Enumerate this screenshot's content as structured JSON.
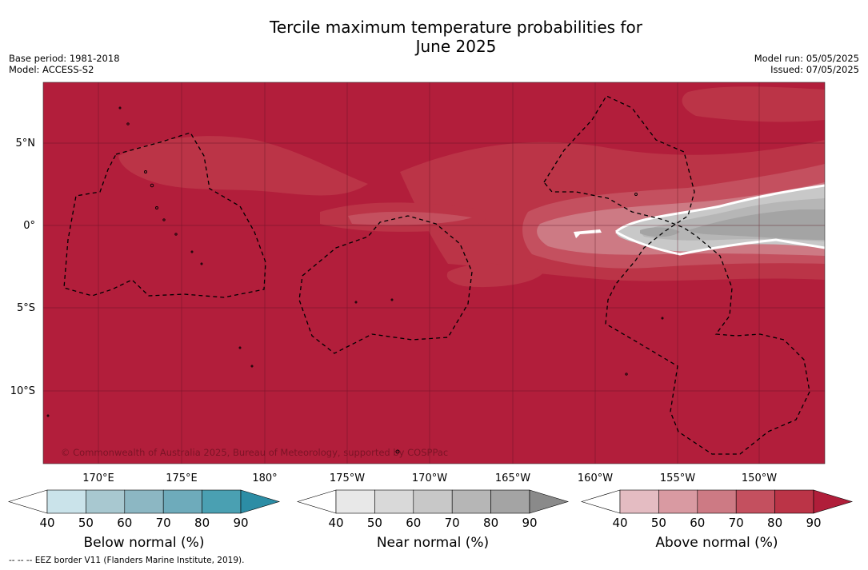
{
  "title_line1": "Tercile maximum temperature probabilities for",
  "title_line2": "June 2025",
  "base_period": "Base period: 1981-2018",
  "model": "Model: ACCESS-S2",
  "model_run": "Model run: 05/05/2025",
  "issued": "Issued: 07/05/2025",
  "copyright": "© Commonwealth of Australia 2025, Bureau of Meteorology, supported by COSPPac",
  "footnote": "--  --  -- EEZ border V11 (Flanders Marine Institute, 2019).",
  "lat_labels": [
    "5°N",
    "0°",
    "5°S",
    "10°S"
  ],
  "lon_labels": [
    "170°E",
    "175°E",
    "180°",
    "175°W",
    "170°W",
    "165°W",
    "160°W",
    "155°W",
    "150°W"
  ],
  "colorbars": [
    {
      "title": "Below normal (%)",
      "ticks": [
        "40",
        "50",
        "60",
        "70",
        "80",
        "90"
      ],
      "colors": [
        "#ffffff",
        "#cae3ea",
        "#a8c8d0",
        "#8cb7c3",
        "#6eabbb",
        "#4aa0b2",
        "#2c8da5"
      ]
    },
    {
      "title": "Near normal (%)",
      "ticks": [
        "40",
        "50",
        "60",
        "70",
        "80",
        "90"
      ],
      "colors": [
        "#ffffff",
        "#e8e8e8",
        "#d9d9d9",
        "#c8c8c8",
        "#b6b6b6",
        "#a4a4a4",
        "#8a8a8a"
      ]
    },
    {
      "title": "Above normal (%)",
      "ticks": [
        "40",
        "50",
        "60",
        "70",
        "80",
        "90"
      ],
      "colors": [
        "#ffffff",
        "#e4bcc2",
        "#d99aa2",
        "#cd7a84",
        "#c4505f",
        "#bb3447",
        "#b01e3a"
      ]
    }
  ],
  "colors": {
    "above_90": "#b21e3b",
    "above_80": "#bb3447",
    "above_70": "#c4505f",
    "above_60": "#cd7a84",
    "near_60": "#c8c8c8",
    "near_70": "#b6b6b6",
    "near_80": "#a4a4a4"
  }
}
